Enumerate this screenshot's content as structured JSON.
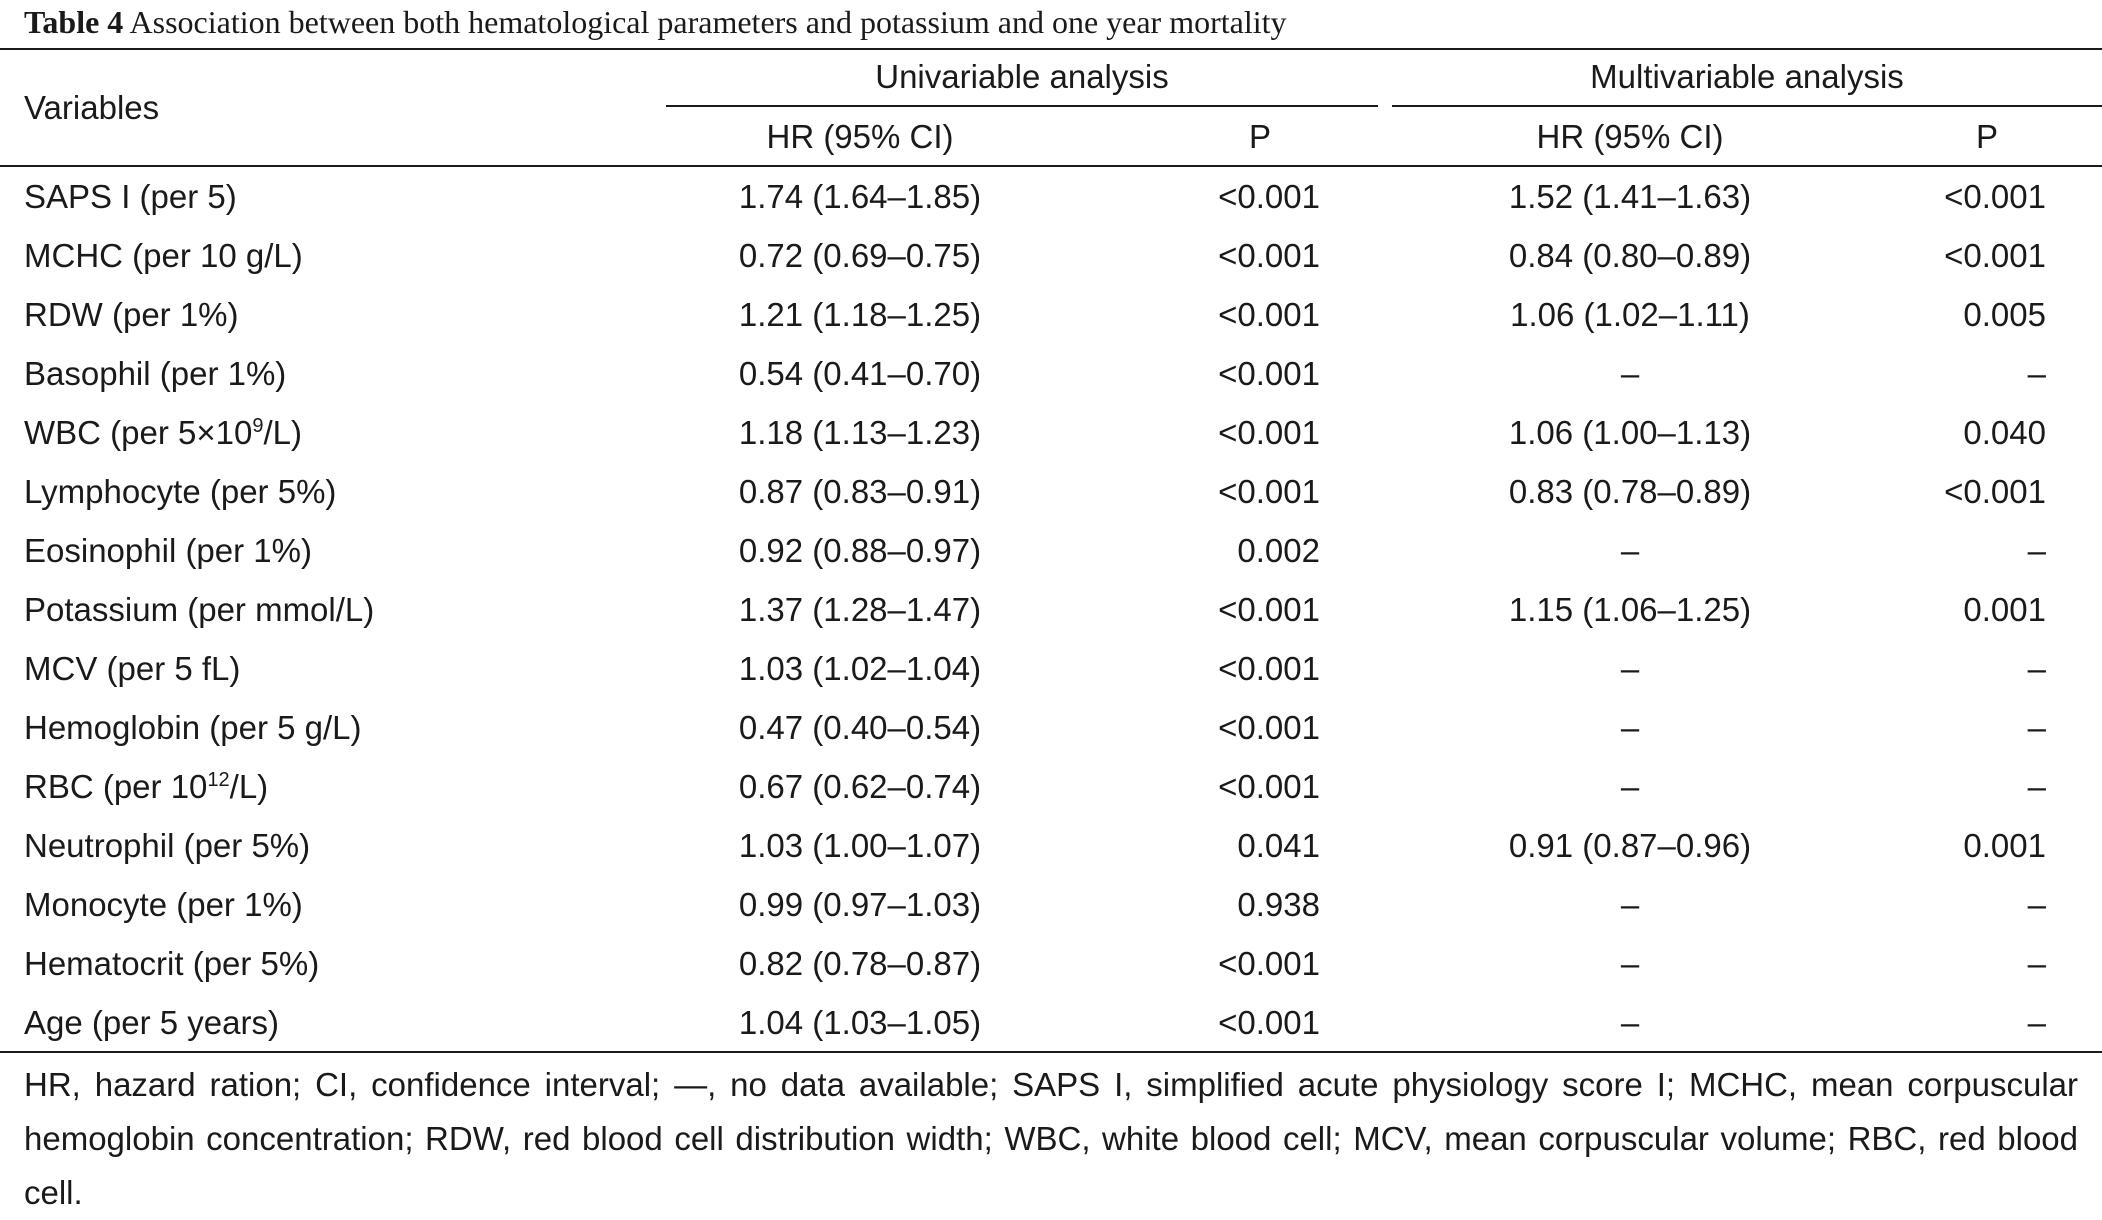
{
  "caption": {
    "label": "Table 4",
    "text": " Association between both hematological parameters and potassium and one year mortality"
  },
  "header": {
    "variables": "Variables",
    "univariable": "Univariable analysis",
    "multivariable": "Multivariable analysis",
    "hr": "HR (95% CI)",
    "p": "P"
  },
  "rows": [
    {
      "var": "SAPS I (per 5)",
      "sup": "",
      "var_after": "",
      "uhr": "1.74 (1.64–1.85)",
      "up": "<0.001",
      "mhr": "1.52 (1.41–1.63)",
      "mp": "<0.001"
    },
    {
      "var": "MCHC (per 10 g/L)",
      "sup": "",
      "var_after": "",
      "uhr": "0.72 (0.69–0.75)",
      "up": "<0.001",
      "mhr": "0.84 (0.80–0.89)",
      "mp": "<0.001"
    },
    {
      "var": "RDW (per 1%)",
      "sup": "",
      "var_after": "",
      "uhr": "1.21 (1.18–1.25)",
      "up": "<0.001",
      "mhr": "1.06 (1.02–1.11)",
      "mp": "0.005"
    },
    {
      "var": "Basophil (per 1%)",
      "sup": "",
      "var_after": "",
      "uhr": "0.54 (0.41–0.70)",
      "up": "<0.001",
      "mhr": "–",
      "mp": "–"
    },
    {
      "var": "WBC (per 5×10",
      "sup": "9",
      "var_after": "/L)",
      "uhr": "1.18 (1.13–1.23)",
      "up": "<0.001",
      "mhr": "1.06 (1.00–1.13)",
      "mp": "0.040"
    },
    {
      "var": "Lymphocyte (per 5%)",
      "sup": "",
      "var_after": "",
      "uhr": "0.87 (0.83–0.91)",
      "up": "<0.001",
      "mhr": "0.83 (0.78–0.89)",
      "mp": "<0.001"
    },
    {
      "var": "Eosinophil (per 1%)",
      "sup": "",
      "var_after": "",
      "uhr": "0.92 (0.88–0.97)",
      "up": "0.002",
      "mhr": "–",
      "mp": "–"
    },
    {
      "var": "Potassium (per mmol/L)",
      "sup": "",
      "var_after": "",
      "uhr": "1.37 (1.28–1.47)",
      "up": "<0.001",
      "mhr": "1.15 (1.06–1.25)",
      "mp": "0.001"
    },
    {
      "var": "MCV (per 5 fL)",
      "sup": "",
      "var_after": "",
      "uhr": "1.03 (1.02–1.04)",
      "up": "<0.001",
      "mhr": "–",
      "mp": "–"
    },
    {
      "var": "Hemoglobin (per 5 g/L)",
      "sup": "",
      "var_after": "",
      "uhr": "0.47 (0.40–0.54)",
      "up": "<0.001",
      "mhr": "–",
      "mp": "–"
    },
    {
      "var": "RBC (per 10",
      "sup": "12",
      "var_after": "/L)",
      "uhr": "0.67 (0.62–0.74)",
      "up": "<0.001",
      "mhr": "–",
      "mp": "–"
    },
    {
      "var": "Neutrophil (per 5%)",
      "sup": "",
      "var_after": "",
      "uhr": "1.03 (1.00–1.07)",
      "up": "0.041",
      "mhr": "0.91 (0.87–0.96)",
      "mp": "0.001"
    },
    {
      "var": "Monocyte (per 1%)",
      "sup": "",
      "var_after": "",
      "uhr": "0.99 (0.97–1.03)",
      "up": "0.938",
      "mhr": "–",
      "mp": "–"
    },
    {
      "var": "Hematocrit (per 5%)",
      "sup": "",
      "var_after": "",
      "uhr": "0.82 (0.78–0.87)",
      "up": "<0.001",
      "mhr": "–",
      "mp": "–"
    },
    {
      "var": "Age (per 5 years)",
      "sup": "",
      "var_after": "",
      "uhr": "1.04 (1.03–1.05)",
      "up": "<0.001",
      "mhr": "–",
      "mp": "–"
    }
  ],
  "footnote": "HR, hazard ration; CI, confidence interval; —, no data available; SAPS I, simplified acute physiology score I; MCHC, mean corpuscular hemoglobin concentration; RDW, red blood cell distribution width; WBC, white blood cell; MCV, mean corpuscular volume; RBC, red blood cell."
}
